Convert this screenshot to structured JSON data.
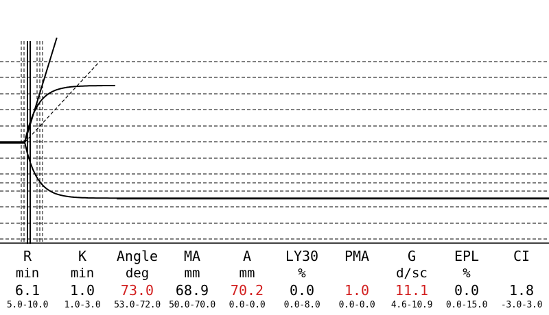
{
  "chart_data": {
    "type": "line",
    "title": "",
    "xlabel": "",
    "ylabel": "",
    "colors": {
      "trace": "#000000",
      "abnormal_value": "#d21f1f",
      "normal_value": "#000000"
    },
    "tracing": {
      "split_point_min": 6.1,
      "k_time_min": 1.0,
      "angle_deg": 73.0,
      "ma_mm": 68.9,
      "amplitude_mm": 70.2,
      "grid": "dashed horizontal lines",
      "x_range_min": [
        0,
        30
      ]
    },
    "parameters": [
      {
        "name": "R",
        "unit": "min",
        "value": "6.1",
        "range": "5.0-10.0",
        "abnormal": false
      },
      {
        "name": "K",
        "unit": "min",
        "value": "1.0",
        "range": "1.0-3.0",
        "abnormal": false
      },
      {
        "name": "Angle",
        "unit": "deg",
        "value": "73.0",
        "range": "53.0-72.0",
        "abnormal": true
      },
      {
        "name": "MA",
        "unit": "mm",
        "value": "68.9",
        "range": "50.0-70.0",
        "abnormal": false
      },
      {
        "name": "A",
        "unit": "mm",
        "value": "70.2",
        "range": "0.0-0.0",
        "abnormal": true
      },
      {
        "name": "LY30",
        "unit": "%",
        "value": "0.0",
        "range": "0.0-8.0",
        "abnormal": false
      },
      {
        "name": "PMA",
        "unit": "",
        "value": "1.0",
        "range": "0.0-0.0",
        "abnormal": true
      },
      {
        "name": "G",
        "unit": "d/sc",
        "value": "11.1",
        "range": "4.6-10.9",
        "abnormal": true
      },
      {
        "name": "EPL",
        "unit": "%",
        "value": "0.0",
        "range": "0.0-15.0",
        "abnormal": false
      },
      {
        "name": "CI",
        "unit": "",
        "value": "1.8",
        "range": "-3.0-3.0",
        "abnormal": false
      }
    ]
  }
}
